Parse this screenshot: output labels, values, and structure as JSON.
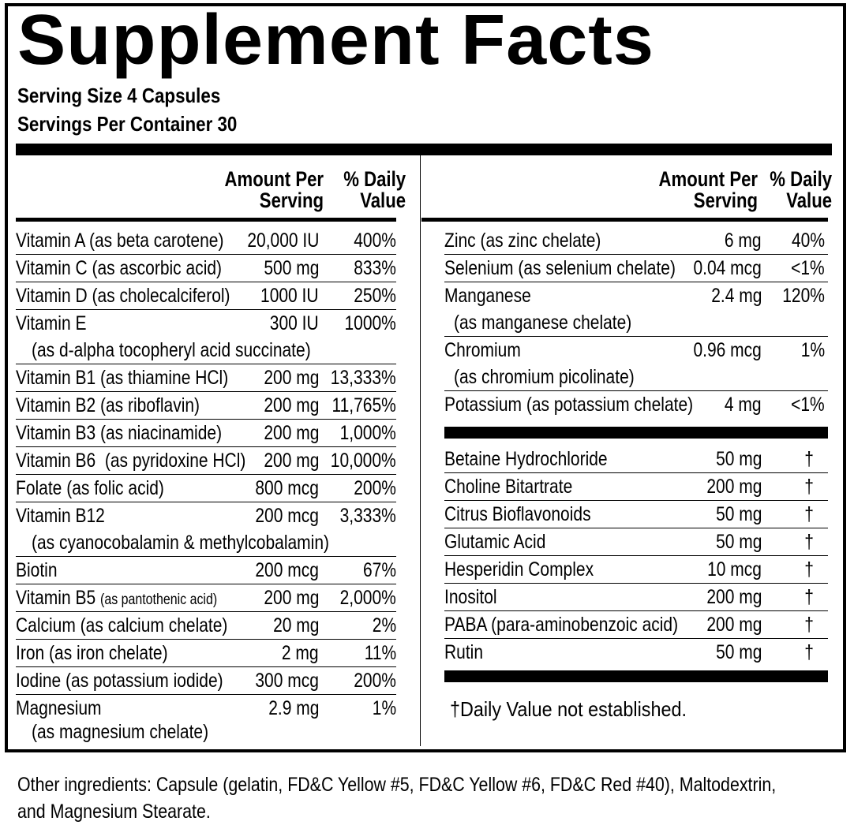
{
  "title": "Supplement Facts",
  "serving_size": "Serving Size 4 Capsules",
  "servings_per_container": "Servings Per Container 30",
  "headers": {
    "amount_line1": "Amount Per",
    "amount_line2": "Serving",
    "dv_line1": "% Daily",
    "dv_line2": "Value"
  },
  "left_rows": [
    {
      "name": "Vitamin A (as beta carotene)",
      "amount": "20,000 IU",
      "dv": "400%"
    },
    {
      "name": "Vitamin C (as ascorbic acid)",
      "amount": "500 mg",
      "dv": "833%"
    },
    {
      "name": "Vitamin D (as cholecalciferol)",
      "amount": "1000 IU",
      "dv": "250%"
    },
    {
      "name": "Vitamin E",
      "sub": "(as d-alpha tocopheryl acid succinate)",
      "amount": "300 IU",
      "dv": "1000%"
    },
    {
      "name": "Vitamin B1 (as thiamine HCl)",
      "amount": "200 mg",
      "dv": "13,333%"
    },
    {
      "name": "Vitamin B2 (as riboflavin)",
      "amount": "200 mg",
      "dv": "11,765%"
    },
    {
      "name": "Vitamin B3 (as niacinamide)",
      "amount": "200 mg",
      "dv": "1,000%"
    },
    {
      "name": "Vitamin B6  (as pyridoxine HCl)",
      "amount": "200 mg",
      "dv": "10,000%"
    },
    {
      "name": "Folate (as folic acid)",
      "amount": "800 mcg",
      "dv": "200%"
    },
    {
      "name": "Vitamin B12",
      "sub": "(as cyanocobalamin & methylcobalamin)",
      "amount": "200 mcg",
      "dv": "3,333%"
    },
    {
      "name": "Biotin",
      "amount": "200 mcg",
      "dv": "67%"
    },
    {
      "name": "Vitamin B5",
      "name_small": "(as pantothenic acid)",
      "amount": "200 mg",
      "dv": "2,000%"
    },
    {
      "name": "Calcium (as calcium chelate)",
      "amount": "20 mg",
      "dv": "2%"
    },
    {
      "name": "Iron (as iron chelate)",
      "amount": "2 mg",
      "dv": "11%"
    },
    {
      "name": "Iodine (as potassium iodide)",
      "amount": "300 mcg",
      "dv": "200%"
    },
    {
      "name": "Magnesium",
      "sub": "(as magnesium chelate)",
      "amount": "2.9 mg",
      "dv": "1%"
    }
  ],
  "right_rows": [
    {
      "name": "Zinc (as zinc chelate)",
      "amount": "6 mg",
      "dv": "40%"
    },
    {
      "name": "Selenium (as selenium chelate)",
      "amount": "0.04 mcg",
      "dv": "<1%"
    },
    {
      "name": "Manganese",
      "sub": "(as manganese chelate)",
      "amount": "2.4 mg",
      "dv": "120%"
    },
    {
      "name": "Chromium",
      "sub": "(as chromium picolinate)",
      "amount": "0.96 mcg",
      "dv": "1%"
    },
    {
      "name": "Potassium (as potassium chelate)",
      "amount": "4 mg",
      "dv": "<1%"
    }
  ],
  "blend_rows": [
    {
      "name": "Betaine Hydrochloride",
      "amount": "50 mg",
      "dv": "†"
    },
    {
      "name": "Choline Bitartrate",
      "amount": "200 mg",
      "dv": "†"
    },
    {
      "name": "Citrus Bioflavonoids",
      "amount": "50 mg",
      "dv": "†"
    },
    {
      "name": "Glutamic Acid",
      "amount": "50 mg",
      "dv": "†"
    },
    {
      "name": "Hesperidin Complex",
      "amount": "10 mcg",
      "dv": "†"
    },
    {
      "name": "Inositol",
      "amount": "200 mg",
      "dv": "†"
    },
    {
      "name": "PABA (para-aminobenzoic acid)",
      "amount": "200 mg",
      "dv": "†"
    },
    {
      "name": "Rutin",
      "amount": "50 mg",
      "dv": "†"
    }
  ],
  "footnote": "†Daily Value not established.",
  "other_ingredients_line1": "Other ingredients: Capsule (gelatin, FD&C Yellow #5, FD&C Yellow #6, FD&C Red #40), Maltodextrin,",
  "other_ingredients_line2": "and Magnesium Stearate."
}
